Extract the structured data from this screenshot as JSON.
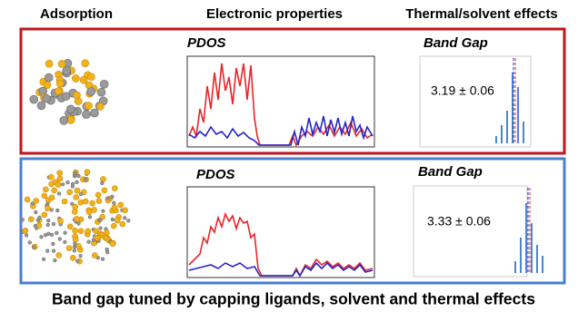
{
  "headers": [
    "Adsorption",
    "Electronic properties",
    "Thermal/solvent effects"
  ],
  "panels": [
    {
      "pdos_title": "PDOS",
      "band_gap_title": "Band Gap",
      "band_gap_label": "3.19 ± 0.06"
    },
    {
      "pdos_title": "PDOS",
      "band_gap_title": "Band Gap",
      "band_gap_label": "3.33 ± 0.06"
    }
  ],
  "caption": "Band gap tuned by capping ligands, solvent and thermal effects"
}
